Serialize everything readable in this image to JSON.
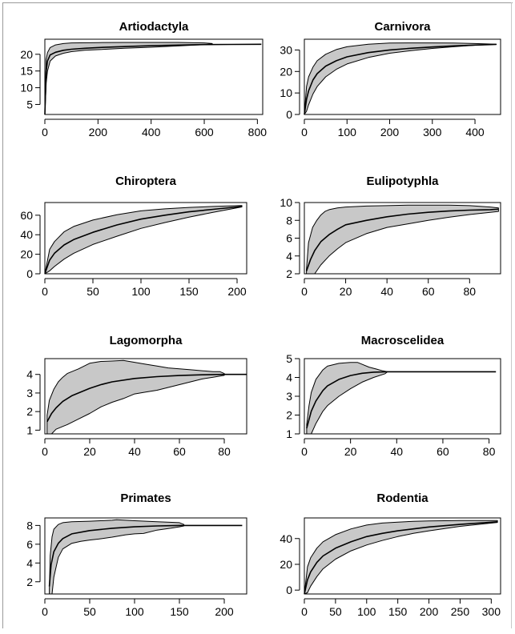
{
  "chart_data": [
    {
      "type": "area",
      "title": "Artiodactyla",
      "xlabel": "",
      "ylabel": "",
      "xlim": [
        0,
        820
      ],
      "ylim": [
        2,
        24.5
      ],
      "xticks": [
        0,
        200,
        400,
        600,
        800
      ],
      "xtick_labels": [
        "0",
        "200",
        "400",
        "600",
        "800"
      ],
      "yticks": [
        5,
        10,
        15,
        20
      ],
      "ytick_labels": [
        "5",
        "10",
        "15",
        "20"
      ],
      "grid": false,
      "legend": "none",
      "mean": {
        "x": [
          0,
          5,
          10,
          20,
          40,
          70,
          100,
          150,
          200,
          300,
          400,
          500,
          600,
          700,
          815
        ],
        "y": [
          2,
          15,
          18,
          19.8,
          20.6,
          21.2,
          21.5,
          21.8,
          22,
          22.3,
          22.55,
          22.75,
          22.9,
          22.95,
          23
        ]
      },
      "upper": {
        "x": [
          0,
          5,
          10,
          20,
          40,
          70,
          100,
          200,
          300,
          400,
          500,
          600,
          630
        ],
        "y": [
          2,
          18.5,
          20.5,
          22,
          22.8,
          23.2,
          23.4,
          23.5,
          23.55,
          23.55,
          23.55,
          23.4,
          23.2
        ]
      },
      "lower": {
        "x": [
          0,
          5,
          10,
          20,
          40,
          70,
          100,
          150,
          200,
          300,
          400,
          500,
          600,
          630
        ],
        "y": [
          2,
          11.5,
          15,
          18,
          19.5,
          20.3,
          20.8,
          21.2,
          21.4,
          21.8,
          22.1,
          22.5,
          22.9,
          23.1
        ]
      }
    },
    {
      "type": "area",
      "title": "Carnivora",
      "xlabel": "",
      "ylabel": "",
      "xlim": [
        0,
        460
      ],
      "ylim": [
        0,
        35
      ],
      "xticks": [
        0,
        100,
        200,
        300,
        400
      ],
      "xtick_labels": [
        "0",
        "100",
        "200",
        "300",
        "400"
      ],
      "yticks": [
        0,
        10,
        20,
        30
      ],
      "ytick_labels": [
        "0",
        "10",
        "20",
        "30"
      ],
      "grid": false,
      "legend": "none",
      "mean": {
        "x": [
          0,
          5,
          10,
          20,
          30,
          50,
          75,
          100,
          150,
          200,
          250,
          300,
          350,
          400,
          450
        ],
        "y": [
          0,
          7,
          11,
          16,
          19,
          22.5,
          25,
          26.8,
          28.8,
          30,
          30.8,
          31.4,
          31.9,
          32.3,
          32.6
        ]
      },
      "upper": {
        "x": [
          0,
          5,
          10,
          20,
          30,
          50,
          75,
          100,
          150,
          200,
          250,
          300,
          350,
          400,
          450
        ],
        "y": [
          0,
          13,
          17.5,
          22,
          25,
          28,
          30.2,
          31.5,
          32.7,
          33.2,
          33.3,
          33.3,
          33.2,
          33,
          32.7
        ]
      },
      "lower": {
        "x": [
          0,
          5,
          10,
          20,
          30,
          50,
          75,
          100,
          150,
          200,
          250,
          300,
          350,
          400,
          450
        ],
        "y": [
          0,
          1.5,
          4.5,
          9.5,
          13,
          17.5,
          21,
          23.5,
          26.5,
          28.5,
          29.7,
          30.7,
          31.5,
          32.2,
          32.6
        ]
      }
    },
    {
      "type": "area",
      "title": "Chiroptera",
      "xlabel": "",
      "ylabel": "",
      "xlim": [
        0,
        210
      ],
      "ylim": [
        0,
        73
      ],
      "xticks": [
        0,
        50,
        100,
        150,
        200
      ],
      "xtick_labels": [
        "0",
        "50",
        "100",
        "150",
        "200"
      ],
      "yticks": [
        0,
        20,
        40,
        60
      ],
      "ytick_labels": [
        "0",
        "20",
        "40",
        "60"
      ],
      "grid": false,
      "legend": "none",
      "mean": {
        "x": [
          0,
          5,
          10,
          20,
          30,
          50,
          75,
          100,
          125,
          150,
          175,
          205
        ],
        "y": [
          0,
          14,
          21,
          29.5,
          35,
          42.5,
          50,
          56,
          60,
          63.5,
          66,
          69
        ]
      },
      "upper": {
        "x": [
          0,
          5,
          10,
          20,
          30,
          50,
          75,
          100,
          125,
          150,
          175,
          205
        ],
        "y": [
          0,
          25,
          33,
          43,
          48.5,
          55,
          60.5,
          64.5,
          66.5,
          68,
          69,
          70
        ]
      },
      "lower": {
        "x": [
          0,
          5,
          10,
          20,
          30,
          50,
          75,
          100,
          125,
          150,
          175,
          205
        ],
        "y": [
          0,
          3,
          7.5,
          15,
          21,
          30,
          38.5,
          46.5,
          52.5,
          58,
          63,
          68.5
        ]
      }
    },
    {
      "type": "area",
      "title": "Eulipotyphla",
      "xlabel": "",
      "ylabel": "",
      "xlim": [
        0,
        95
      ],
      "ylim": [
        2,
        10
      ],
      "xticks": [
        0,
        20,
        40,
        60,
        80
      ],
      "xtick_labels": [
        "0",
        "20",
        "40",
        "60",
        "80"
      ],
      "yticks": [
        2,
        4,
        6,
        8,
        10
      ],
      "ytick_labels": [
        "2",
        "4",
        "6",
        "8",
        "10"
      ],
      "grid": false,
      "legend": "none",
      "mean": {
        "x": [
          1,
          3,
          5,
          8,
          12,
          16,
          20,
          30,
          40,
          50,
          60,
          70,
          80,
          90,
          94
        ],
        "y": [
          2.3,
          3.6,
          4.6,
          5.6,
          6.4,
          7,
          7.5,
          8,
          8.4,
          8.7,
          8.9,
          9.05,
          9.15,
          9.2,
          9.25
        ]
      },
      "upper": {
        "x": [
          1,
          2,
          4,
          6,
          8,
          10,
          12,
          16,
          20,
          30,
          40,
          50,
          60,
          70,
          80,
          90,
          94
        ],
        "y": [
          2.5,
          5.5,
          7.2,
          8,
          8.6,
          9,
          9.2,
          9.4,
          9.5,
          9.6,
          9.65,
          9.7,
          9.7,
          9.7,
          9.65,
          9.5,
          9.4
        ]
      },
      "lower": {
        "x": [
          1,
          5,
          8,
          12,
          16,
          20,
          30,
          40,
          50,
          60,
          70,
          80,
          90,
          94
        ],
        "y": [
          2,
          2,
          3,
          4,
          4.8,
          5.5,
          6.5,
          7.2,
          7.6,
          8,
          8.35,
          8.65,
          8.9,
          9
        ]
      }
    },
    {
      "type": "area",
      "title": "Lagomorpha",
      "xlabel": "",
      "ylabel": "",
      "xlim": [
        0,
        90
      ],
      "ylim": [
        0.8,
        4.85
      ],
      "xticks": [
        0,
        20,
        40,
        60,
        80
      ],
      "xtick_labels": [
        "0",
        "20",
        "40",
        "60",
        "80"
      ],
      "yticks": [
        1,
        2,
        3,
        4
      ],
      "ytick_labels": [
        "1",
        "2",
        "3",
        "4"
      ],
      "grid": false,
      "legend": "none",
      "mean": {
        "x": [
          1,
          3,
          5,
          8,
          12,
          16,
          20,
          25,
          30,
          40,
          50,
          60,
          70,
          80,
          90
        ],
        "y": [
          1.45,
          1.9,
          2.2,
          2.55,
          2.85,
          3.05,
          3.25,
          3.45,
          3.6,
          3.78,
          3.88,
          3.94,
          3.98,
          4,
          4
        ]
      },
      "upper": {
        "x": [
          1,
          2,
          4,
          6,
          8,
          10,
          15,
          20,
          25,
          30,
          35,
          40,
          45,
          50,
          55,
          60,
          65,
          70,
          75,
          78,
          80
        ],
        "y": [
          1.8,
          2.6,
          3.2,
          3.6,
          3.85,
          4.05,
          4.3,
          4.6,
          4.7,
          4.72,
          4.75,
          4.65,
          4.55,
          4.45,
          4.35,
          4.3,
          4.25,
          4.2,
          4.15,
          4.15,
          4.05
        ]
      },
      "lower": {
        "x": [
          1,
          3,
          5,
          8,
          10,
          15,
          20,
          25,
          30,
          35,
          40,
          45,
          50,
          55,
          60,
          65,
          70,
          75,
          80
        ],
        "y": [
          0.8,
          0.8,
          1.05,
          1.2,
          1.3,
          1.6,
          1.9,
          2.25,
          2.5,
          2.7,
          2.95,
          3.05,
          3.15,
          3.3,
          3.45,
          3.6,
          3.75,
          3.85,
          3.95
        ]
      }
    },
    {
      "type": "area",
      "title": "Macroscelidea",
      "xlabel": "",
      "ylabel": "",
      "xlim": [
        0,
        85
      ],
      "ylim": [
        1,
        5
      ],
      "xticks": [
        0,
        20,
        40,
        60,
        80
      ],
      "xtick_labels": [
        "0",
        "20",
        "40",
        "60",
        "80"
      ],
      "yticks": [
        1,
        2,
        3,
        4,
        5
      ],
      "ytick_labels": [
        "1",
        "2",
        "3",
        "4",
        "5"
      ],
      "grid": false,
      "legend": "none",
      "mean": {
        "x": [
          1,
          3,
          5,
          8,
          10,
          15,
          20,
          25,
          30,
          36,
          40,
          50,
          60,
          70,
          83
        ],
        "y": [
          1.3,
          2.2,
          2.75,
          3.3,
          3.55,
          3.9,
          4.1,
          4.22,
          4.28,
          4.3,
          4.3,
          4.3,
          4.3,
          4.3,
          4.3
        ]
      },
      "upper": {
        "x": [
          1,
          2,
          3,
          5,
          8,
          10,
          15,
          20,
          23,
          25,
          28,
          31,
          34,
          36
        ],
        "y": [
          1.5,
          2.5,
          3.2,
          3.9,
          4.4,
          4.6,
          4.75,
          4.8,
          4.8,
          4.7,
          4.55,
          4.45,
          4.35,
          4.3
        ]
      },
      "lower": {
        "x": [
          1,
          3,
          5,
          8,
          10,
          15,
          20,
          25,
          30,
          35,
          36
        ],
        "y": [
          1,
          1,
          1.55,
          2.2,
          2.5,
          3,
          3.4,
          3.75,
          4,
          4.2,
          4.3
        ]
      }
    },
    {
      "type": "area",
      "title": "Primates",
      "xlabel": "",
      "ylabel": "",
      "xlim": [
        0,
        225
      ],
      "ylim": [
        0.7,
        8.8
      ],
      "xticks": [
        0,
        50,
        100,
        150,
        200
      ],
      "xtick_labels": [
        "0",
        "50",
        "100",
        "150",
        "200"
      ],
      "yticks": [
        2,
        4,
        6,
        8
      ],
      "ytick_labels": [
        "2",
        "4",
        "6",
        "8"
      ],
      "grid": false,
      "legend": "none",
      "mean": {
        "x": [
          5,
          7,
          10,
          15,
          20,
          30,
          50,
          75,
          100,
          125,
          150,
          175,
          200,
          220
        ],
        "y": [
          1.5,
          3.8,
          5.2,
          6.1,
          6.6,
          7.1,
          7.45,
          7.7,
          7.85,
          7.95,
          8,
          8,
          8,
          8
        ]
      },
      "upper": {
        "x": [
          5,
          6,
          8,
          10,
          15,
          20,
          30,
          50,
          75,
          80,
          100,
          125,
          150,
          155
        ],
        "y": [
          1.2,
          4.8,
          6.8,
          7.6,
          8.1,
          8.3,
          8.4,
          8.45,
          8.55,
          8.6,
          8.5,
          8.4,
          8.3,
          8.1
        ]
      },
      "lower": {
        "x": [
          5,
          8,
          10,
          15,
          20,
          30,
          40,
          50,
          60,
          75,
          90,
          100,
          110,
          125,
          140,
          150,
          155
        ],
        "y": [
          0.7,
          0.7,
          2.5,
          4.6,
          5.5,
          6.1,
          6.3,
          6.45,
          6.55,
          6.75,
          7,
          7.1,
          7.15,
          7.5,
          7.7,
          7.85,
          7.95
        ]
      }
    },
    {
      "type": "area",
      "title": "Rodentia",
      "xlabel": "",
      "ylabel": "",
      "xlim": [
        0,
        315
      ],
      "ylim": [
        -3,
        56
      ],
      "xticks": [
        0,
        50,
        100,
        150,
        200,
        250,
        300
      ],
      "xtick_labels": [
        "0",
        "50",
        "100",
        "150",
        "200",
        "250",
        "300"
      ],
      "yticks": [
        0,
        20,
        40
      ],
      "ytick_labels": [
        "0",
        "20",
        "40"
      ],
      "grid": false,
      "legend": "none",
      "mean": {
        "x": [
          0,
          5,
          10,
          20,
          30,
          50,
          75,
          100,
          125,
          150,
          175,
          200,
          250,
          310
        ],
        "y": [
          -3,
          8,
          14,
          21.5,
          26.5,
          32.5,
          37.5,
          41.5,
          44,
          46,
          47.5,
          49,
          51,
          53
        ]
      },
      "upper": {
        "x": [
          0,
          5,
          10,
          20,
          30,
          50,
          75,
          100,
          125,
          150,
          175,
          200,
          250,
          310
        ],
        "y": [
          -3,
          18,
          25,
          32.5,
          37.5,
          43,
          47.5,
          50.5,
          52,
          52.8,
          53.3,
          53.7,
          54,
          54
        ]
      },
      "lower": {
        "x": [
          0,
          5,
          10,
          20,
          30,
          50,
          75,
          100,
          125,
          150,
          175,
          200,
          250,
          310
        ],
        "y": [
          -3,
          -2,
          3,
          10.5,
          16.5,
          24,
          30.5,
          35,
          38.5,
          41.5,
          44,
          46,
          49.5,
          52.5
        ]
      }
    }
  ]
}
